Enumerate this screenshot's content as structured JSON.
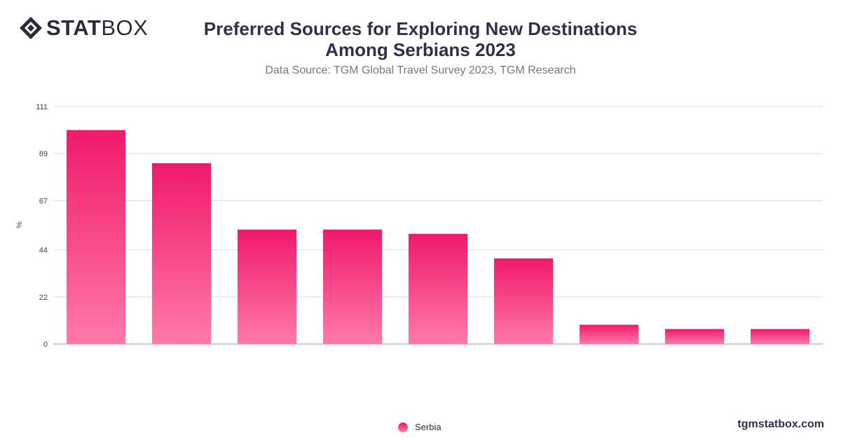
{
  "header": {
    "logo_bold": "STAT",
    "logo_light": "BOX",
    "title_line1": "Preferred Sources for Exploring New Destinations",
    "title_line2": "Among Serbians 2023",
    "subtitle": "Data Source: TGM Global Travel Survey 2023, TGM Research"
  },
  "footer": {
    "brand": "tgmstatbox.com"
  },
  "colors": {
    "bar_top": "#f0196b",
    "bar_bottom": "#ff7aa8",
    "grid": "#dddddd",
    "text": "#2e3147"
  },
  "chart_data": {
    "type": "bar",
    "title": "Preferred Sources for Exploring New Destinations Among Serbians 2023",
    "subtitle": "Data Source: TGM Global Travel Survey 2023, TGM Research",
    "ylabel": "%",
    "xlabel": "",
    "ylim": [
      0,
      111
    ],
    "yticks": [
      0,
      22,
      44,
      67,
      89,
      111
    ],
    "grid": true,
    "legend_position": "bottom",
    "categories": [
      "",
      "",
      "",
      "",
      "",
      "",
      "",
      "",
      ""
    ],
    "series": [
      {
        "name": "Serbia",
        "values": [
          100,
          84.5,
          53.5,
          53.5,
          51.5,
          40,
          9,
          7,
          7
        ]
      }
    ]
  }
}
